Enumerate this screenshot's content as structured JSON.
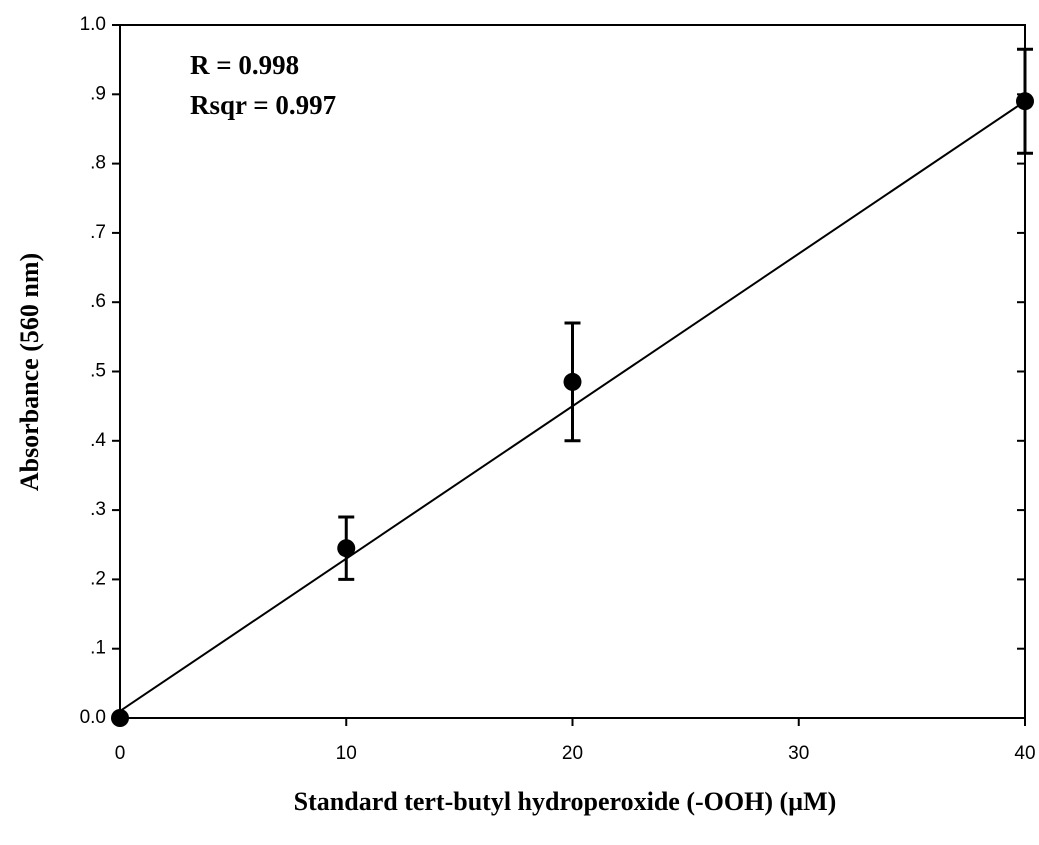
{
  "chart_data": {
    "type": "scatter",
    "annotations": [
      "R = 0.998",
      "Rsqr = 0.997"
    ],
    "x_label": "Standard tert-butyl  hydroperoxide (-OOH) (µM)",
    "y_label": "Absorbance (560 nm)",
    "x": [
      0,
      10,
      20,
      40
    ],
    "series": [
      {
        "color": "#000000",
        "values": [
          0.0,
          0.245,
          0.485,
          0.89
        ],
        "errors": [
          null,
          0.045,
          0.085,
          0.075
        ]
      }
    ],
    "fit": {
      "x": [
        0,
        40
      ],
      "values": [
        0.01,
        0.89
      ],
      "color": "#000000"
    },
    "xlim": [
      0,
      40
    ],
    "xticks": [
      0,
      10,
      20,
      30,
      40
    ],
    "ylim": [
      0,
      1
    ],
    "yticks": [
      {
        "value": 0,
        "label": "0.0"
      },
      {
        "value": 0.1,
        "label": ".1"
      },
      {
        "value": 0.2,
        "label": ".2"
      },
      {
        "value": 0.3,
        "label": ".3"
      },
      {
        "value": 0.4,
        "label": ".4"
      },
      {
        "value": 0.5,
        "label": ".5"
      },
      {
        "value": 0.6,
        "label": ".6"
      },
      {
        "value": 0.7,
        "label": ".7"
      },
      {
        "value": 0.8,
        "label": ".8"
      },
      {
        "value": 0.9,
        "label": ".9"
      },
      {
        "value": 1,
        "label": "1.0"
      }
    ],
    "grid": false
  }
}
